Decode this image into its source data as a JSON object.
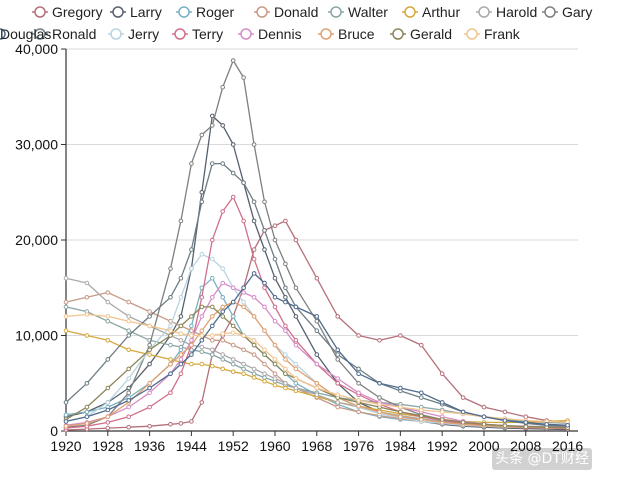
{
  "chart_data": {
    "type": "line",
    "title": "",
    "xlabel": "",
    "ylabel": "",
    "xlim": [
      1920,
      2018
    ],
    "ylim": [
      0,
      40000
    ],
    "x": [
      1920,
      1924,
      1928,
      1932,
      1936,
      1940,
      1942,
      1944,
      1946,
      1948,
      1950,
      1952,
      1954,
      1956,
      1958,
      1960,
      1962,
      1964,
      1968,
      1972,
      1976,
      1980,
      1984,
      1988,
      1992,
      1996,
      2000,
      2004,
      2008,
      2012,
      2016
    ],
    "x_ticks": [
      {
        "value": 1920,
        "label": "1920"
      },
      {
        "value": 1928,
        "label": "1928"
      },
      {
        "value": 1936,
        "label": "1936"
      },
      {
        "value": 1944,
        "label": "1944"
      },
      {
        "value": 1952,
        "label": "1952"
      },
      {
        "value": 1960,
        "label": "1960"
      },
      {
        "value": 1968,
        "label": "1968"
      },
      {
        "value": 1976,
        "label": "1976"
      },
      {
        "value": 1984,
        "label": "1984"
      },
      {
        "value": 1992,
        "label": "1992"
      },
      {
        "value": 2000,
        "label": "2000"
      },
      {
        "value": 2008,
        "label": "2008"
      },
      {
        "value": 2016,
        "label": "2016"
      }
    ],
    "y_ticks": [
      {
        "value": 0,
        "label": "0"
      },
      {
        "value": 10000,
        "label": "10,000"
      },
      {
        "value": 20000,
        "label": "20,000"
      },
      {
        "value": 30000,
        "label": "30,000"
      },
      {
        "value": 40000,
        "label": "40,000"
      }
    ],
    "series": [
      {
        "name": "Gregory",
        "color": "#b5707a",
        "values": [
          100,
          200,
          300,
          400,
          500,
          700,
          800,
          1000,
          3000,
          8000,
          10000,
          12000,
          15000,
          19000,
          21000,
          21500,
          22000,
          20000,
          16000,
          12000,
          10000,
          9500,
          10000,
          9000,
          6000,
          3500,
          2500,
          2000,
          1500,
          1100,
          900
        ]
      },
      {
        "name": "Larry",
        "color": "#56606e",
        "values": [
          1500,
          2000,
          3000,
          4500,
          7000,
          10000,
          12000,
          17000,
          25000,
          33000,
          32000,
          30000,
          26000,
          22000,
          19000,
          16000,
          14000,
          12000,
          8000,
          5000,
          3000,
          2000,
          1500,
          1000,
          700,
          500,
          400,
          300,
          250,
          200,
          150
        ]
      },
      {
        "name": "Roger",
        "color": "#7ab0c2",
        "values": [
          1700,
          2000,
          2500,
          3500,
          5000,
          7000,
          8500,
          11000,
          15000,
          16000,
          14000,
          12000,
          10000,
          9000,
          8000,
          7000,
          6000,
          5000,
          3800,
          2800,
          2000,
          1500,
          1200,
          1000,
          800,
          650,
          550,
          500,
          450,
          450,
          450
        ]
      },
      {
        "name": "Donald",
        "color": "#c79a86",
        "values": [
          13500,
          14000,
          14500,
          13500,
          12500,
          11500,
          11000,
          10500,
          10000,
          9500,
          9500,
          9000,
          8500,
          8000,
          7000,
          6000,
          5000,
          4500,
          3500,
          2500,
          2000,
          1600,
          1300,
          1000,
          800,
          600,
          500,
          450,
          400,
          350,
          400
        ]
      },
      {
        "name": "Walter",
        "color": "#8aa5a6",
        "values": [
          13000,
          12500,
          11500,
          10500,
          9500,
          9000,
          8800,
          8500,
          8300,
          8000,
          7500,
          7000,
          6500,
          6000,
          5600,
          5200,
          4800,
          4500,
          4000,
          3500,
          3200,
          3000,
          2800,
          2500,
          2200,
          1800,
          1500,
          1200,
          1000,
          900,
          800
        ]
      },
      {
        "name": "Arthur",
        "color": "#d4a83a",
        "values": [
          10500,
          10000,
          9500,
          8500,
          8000,
          7500,
          7200,
          7000,
          7000,
          6800,
          6500,
          6200,
          6000,
          5600,
          5200,
          4800,
          4500,
          4200,
          3600,
          3000,
          2600,
          2200,
          1800,
          1500,
          1200,
          1000,
          900,
          900,
          900,
          1000,
          1100
        ]
      },
      {
        "name": "Harold",
        "color": "#aaaaaa",
        "values": [
          16000,
          15500,
          13500,
          12000,
          11000,
          10000,
          9500,
          9000,
          8800,
          8500,
          8000,
          7500,
          7000,
          6500,
          6000,
          5500,
          5000,
          4500,
          3800,
          3000,
          2500,
          2000,
          1600,
          1300,
          1000,
          800,
          650,
          550,
          500,
          450,
          450
        ]
      },
      {
        "name": "Gary",
        "color": "#7f7f7f",
        "values": [
          400,
          600,
          1500,
          4000,
          9000,
          17000,
          22000,
          28000,
          31000,
          32000,
          36000,
          38800,
          37000,
          30000,
          24000,
          20000,
          17500,
          15000,
          11500,
          7500,
          5000,
          3500,
          2500,
          1700,
          1200,
          900,
          700,
          550,
          450,
          400,
          350
        ]
      },
      {
        "name": "Ronald",
        "color": "#6d7d84",
        "values": [
          3000,
          5000,
          7500,
          10000,
          12000,
          14000,
          16000,
          19000,
          24000,
          28000,
          28000,
          27000,
          26000,
          24000,
          21000,
          18000,
          15000,
          13000,
          10500,
          8000,
          6500,
          5000,
          4200,
          3500,
          2800,
          2000,
          1500,
          1100,
          800,
          600,
          500
        ]
      },
      {
        "name": "Jerry",
        "color": "#b8d4e0",
        "values": [
          1000,
          1500,
          3000,
          5500,
          8500,
          11000,
          14000,
          17000,
          18500,
          18000,
          17000,
          15000,
          13500,
          12000,
          10500,
          9000,
          8000,
          7000,
          5000,
          3500,
          2500,
          1800,
          1400,
          1000,
          800,
          600,
          500,
          400,
          350,
          300,
          300
        ]
      },
      {
        "name": "Terry",
        "color": "#d0708a",
        "values": [
          300,
          500,
          900,
          1500,
          2500,
          4000,
          6000,
          9000,
          14000,
          20000,
          23000,
          24500,
          22000,
          18000,
          15000,
          13000,
          11000,
          9500,
          7000,
          5000,
          3800,
          2800,
          2000,
          1500,
          1100,
          800,
          600,
          450,
          350,
          300,
          250
        ]
      },
      {
        "name": "Dennis",
        "color": "#d68cc8",
        "values": [
          600,
          900,
          1500,
          2500,
          4000,
          6000,
          7500,
          9500,
          12000,
          14000,
          15500,
          15000,
          14500,
          14000,
          13000,
          11500,
          10500,
          9000,
          7000,
          5500,
          4000,
          3000,
          2500,
          2000,
          1500,
          1000,
          700,
          550,
          450,
          400,
          350
        ]
      },
      {
        "name": "Bruce",
        "color": "#e0a070",
        "values": [
          500,
          800,
          1500,
          3000,
          5000,
          7000,
          8000,
          9000,
          10500,
          12000,
          13000,
          13500,
          13000,
          12000,
          10500,
          9000,
          7500,
          6500,
          5000,
          3500,
          2600,
          2000,
          1500,
          1200,
          900,
          700,
          550,
          450,
          400,
          350,
          300
        ]
      },
      {
        "name": "Gerald",
        "color": "#8b8658",
        "values": [
          1200,
          2500,
          4500,
          6500,
          8500,
          10000,
          11000,
          12000,
          13000,
          13000,
          12000,
          11000,
          10000,
          9000,
          8000,
          7000,
          6000,
          5500,
          4500,
          3500,
          3000,
          2500,
          2000,
          1600,
          1200,
          900,
          700,
          550,
          450,
          400,
          350
        ]
      },
      {
        "name": "Frank",
        "color": "#f2c48e",
        "values": [
          12000,
          12200,
          12000,
          11500,
          11000,
          10500,
          10200,
          10000,
          10000,
          10000,
          10200,
          10300,
          10000,
          9500,
          8500,
          7500,
          6500,
          5500,
          4500,
          3800,
          3200,
          2800,
          2500,
          2200,
          2000,
          1800,
          1500,
          1300,
          1100,
          1000,
          900
        ]
      },
      {
        "name": "Douglas",
        "color": "#4f6a8c",
        "values": [
          1000,
          1500,
          2200,
          3200,
          4500,
          6000,
          7000,
          8000,
          9500,
          11000,
          12500,
          13500,
          15000,
          16500,
          15500,
          14000,
          13500,
          13000,
          12000,
          8500,
          6000,
          5000,
          4500,
          4000,
          3000,
          2000,
          1500,
          1100,
          900,
          700,
          600
        ]
      }
    ]
  },
  "watermark": {
    "text": "头条 @DT财经"
  }
}
